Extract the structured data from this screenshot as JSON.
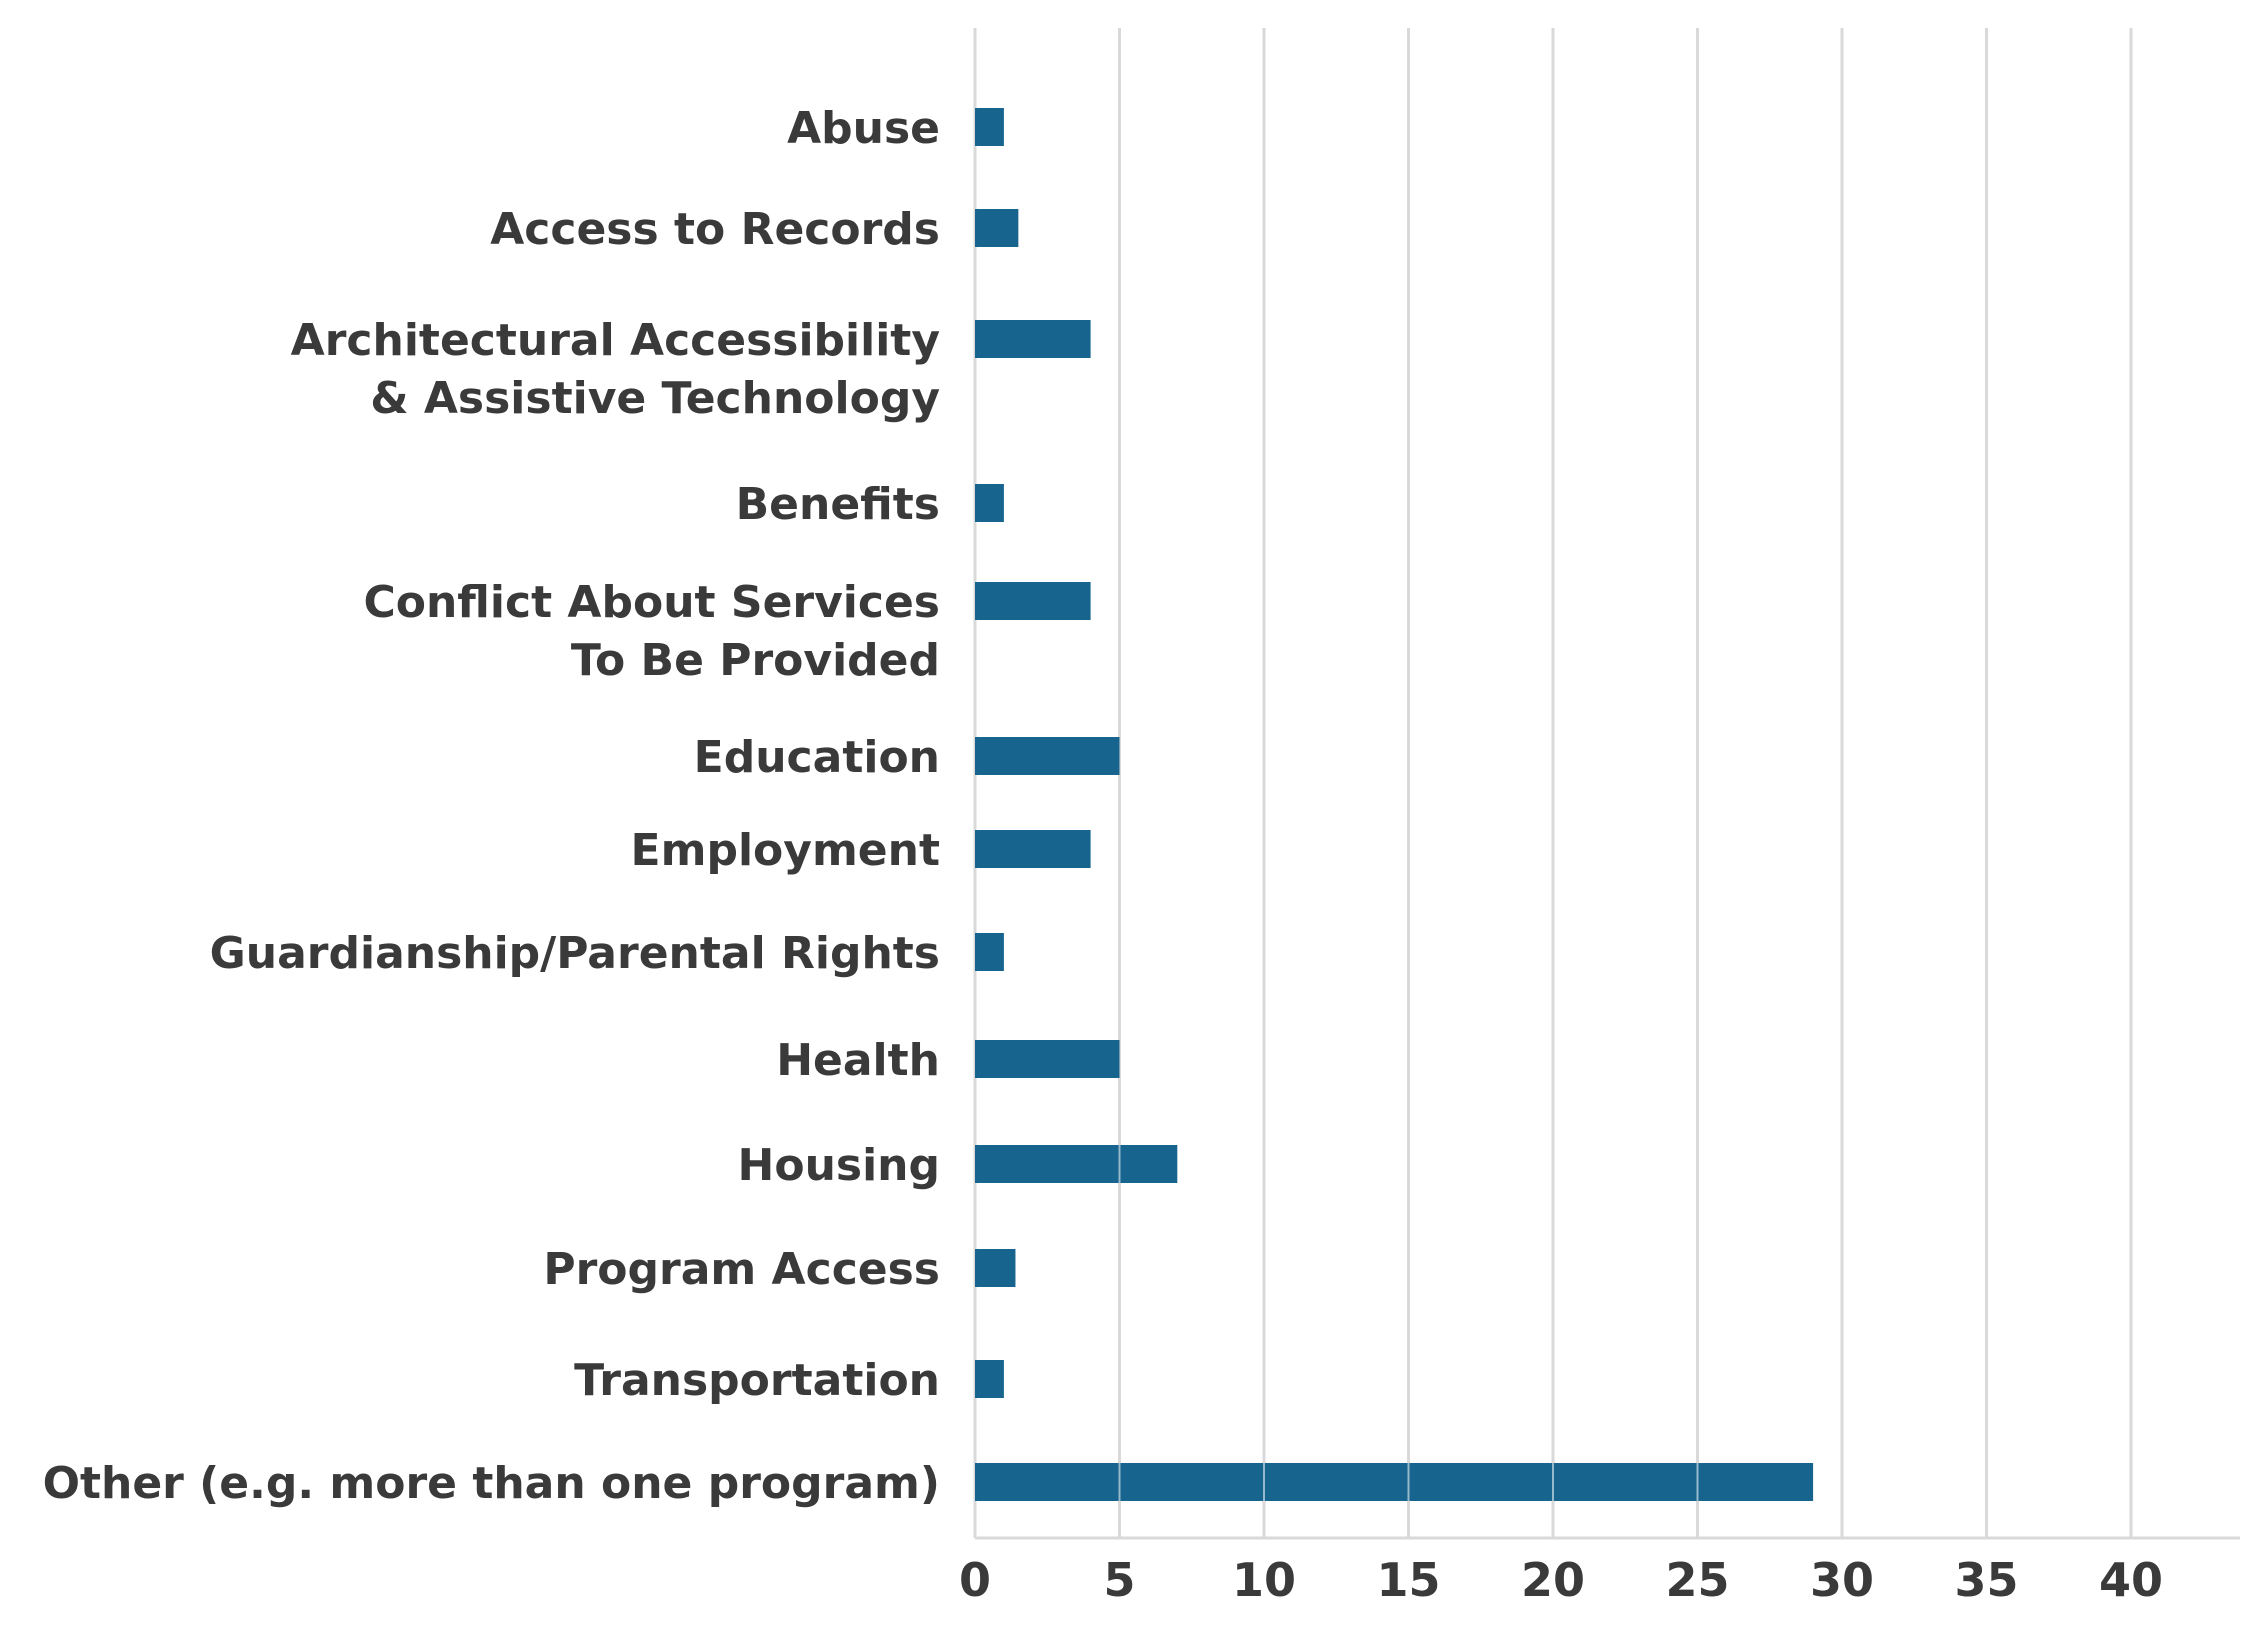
{
  "chart_data": {
    "type": "bar",
    "orientation": "horizontal",
    "title": "",
    "xlabel": "",
    "ylabel": "",
    "categories": [
      [
        "Abuse"
      ],
      [
        "Access to Records"
      ],
      [
        "Architectural Accessibility",
        "& Assistive Technology"
      ],
      [
        "Benefits"
      ],
      [
        "Conflict About Services",
        "To Be Provided"
      ],
      [
        "Education"
      ],
      [
        "Employment"
      ],
      [
        "Guardianship/Parental Rights"
      ],
      [
        "Health"
      ],
      [
        "Housing"
      ],
      [
        "Program Access"
      ],
      [
        "Transportation"
      ],
      [
        "Other (e.g. more than one program)"
      ]
    ],
    "values": [
      1,
      1.5,
      4,
      1,
      4,
      5,
      4,
      1,
      5,
      7,
      1.4,
      1,
      29
    ],
    "xlim": [
      0,
      44
    ],
    "xticks": [
      "0",
      "5",
      "10",
      "15",
      "20",
      "25",
      "30",
      "35",
      "40"
    ],
    "grid": true,
    "colors": {
      "bar": "#17648e",
      "grid": "#d9d9d9",
      "text": "#3a3a3a"
    }
  }
}
